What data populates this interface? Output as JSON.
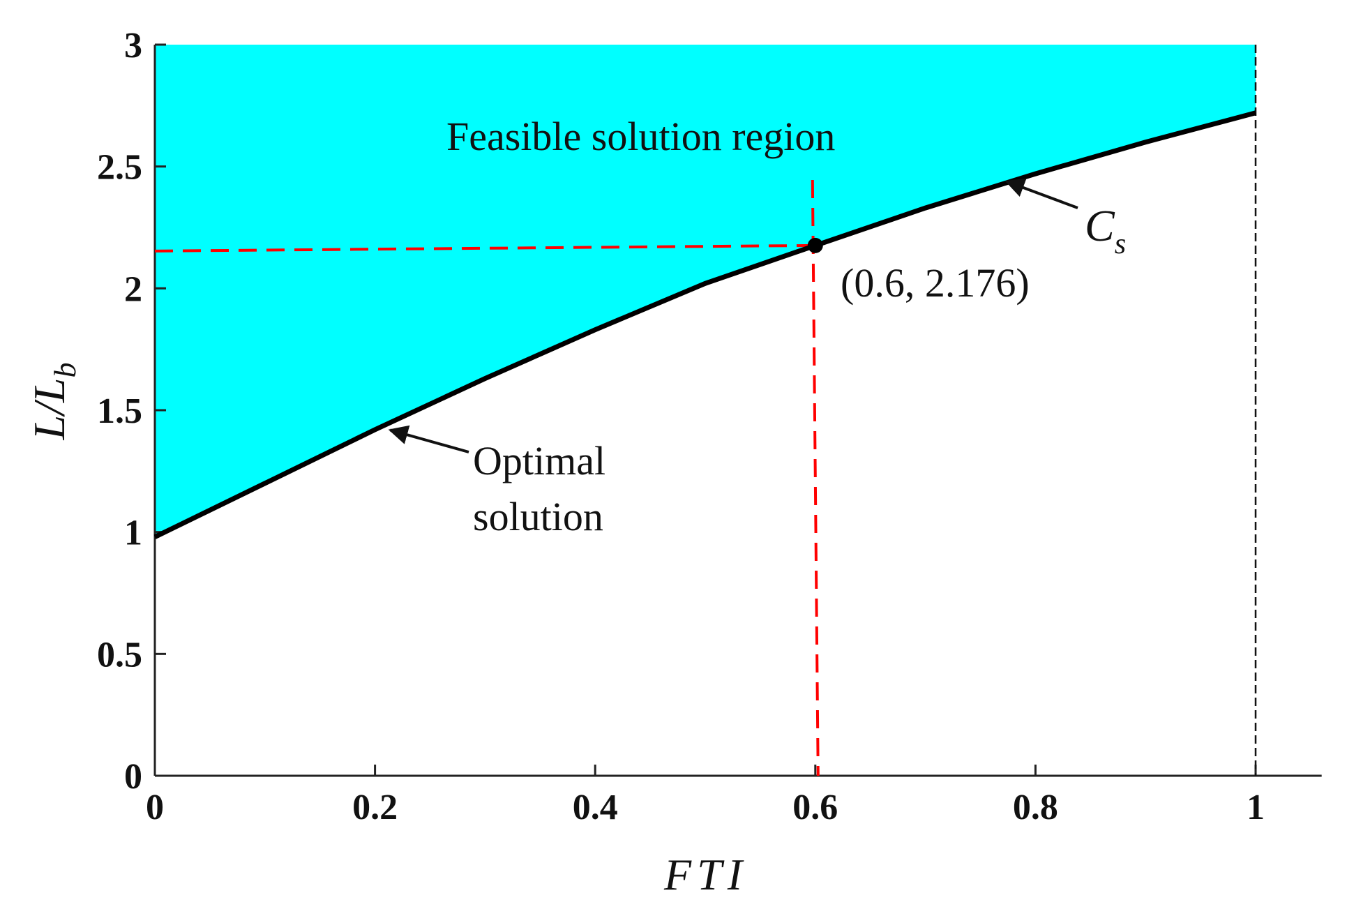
{
  "chart_data": {
    "type": "area",
    "xlabel": "FTI",
    "ylabel": "L/L_b",
    "xlim": [
      0,
      1.06
    ],
    "ylim": [
      0,
      3
    ],
    "x_ticks": [
      0,
      0.2,
      0.4,
      0.6,
      0.8,
      1
    ],
    "x_tick_labels": [
      "0",
      "0.2",
      "0.4",
      "0.6",
      "0.8",
      "1"
    ],
    "y_ticks": [
      0,
      0.5,
      1,
      1.5,
      2,
      2.5,
      3
    ],
    "y_tick_labels": [
      "0",
      "0.5",
      "1",
      "1.5",
      "2",
      "2.5",
      "3"
    ],
    "grid": false,
    "series": [
      {
        "name": "Optimal solution",
        "x": [
          0,
          0.1,
          0.2,
          0.3,
          0.4,
          0.5,
          0.6,
          0.7,
          0.8,
          0.9,
          1.0
        ],
        "y": [
          0.98,
          1.2,
          1.42,
          1.63,
          1.83,
          2.02,
          2.176,
          2.33,
          2.47,
          2.6,
          2.72
        ]
      }
    ],
    "region": {
      "label": "Feasible solution region",
      "color": "#00FFFF"
    },
    "highlight_point": {
      "x": 0.6,
      "y": 2.176,
      "label": "(0.6, 2.176)"
    },
    "guide_color": "#FF0000",
    "boundary_x": 1,
    "annotations": [
      {
        "text_lines": [
          "Optimal",
          "solution"
        ],
        "points_to": {
          "x": 0.21,
          "y": 1.43
        }
      },
      {
        "text": "C",
        "subscript": "s",
        "points_to": {
          "x": 0.77,
          "y": 2.45
        }
      }
    ],
    "plot_frame_x": [
      0,
      1.06
    ]
  }
}
